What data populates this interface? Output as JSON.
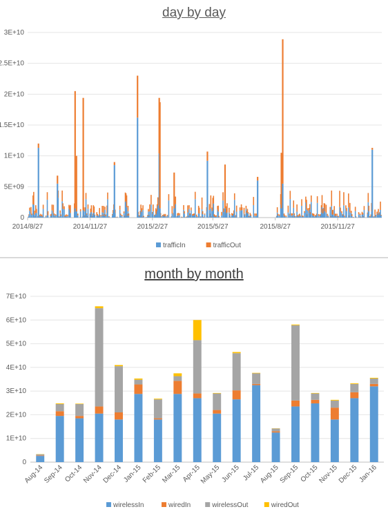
{
  "chart_data": [
    {
      "type": "bar",
      "title": "day by day",
      "stacked": true,
      "ylim": [
        0,
        30000000000
      ],
      "y_ticks": [
        "0",
        "5E+09",
        "1E+10",
        "1.5E+10",
        "2E+10",
        "2.5E+10",
        "3E+10"
      ],
      "x_tick_labels": [
        "2014/8/27",
        "2014/11/27",
        "2015/2/27",
        "2015/5/27",
        "2015/8/27",
        "2015/11/27"
      ],
      "legend_position": "bottom",
      "grid": true,
      "series": [
        {
          "name": "trafficIn",
          "color": "#5b9bd5"
        },
        {
          "name": "trafficOut",
          "color": "#ed7d31"
        }
      ],
      "spikes": [
        {
          "date": "2014-09-12",
          "in": 11300000000,
          "out": 700000000
        },
        {
          "date": "2014-10-10",
          "in": 5500000000,
          "out": 1300000000
        },
        {
          "date": "2014-11-05",
          "in": 1500000000,
          "out": 19000000000
        },
        {
          "date": "2014-11-07",
          "in": 1000000000,
          "out": 9000000000
        },
        {
          "date": "2014-11-17",
          "in": 1200000000,
          "out": 18200000000
        },
        {
          "date": "2015-01-02",
          "in": 8500000000,
          "out": 500000000
        },
        {
          "date": "2015-02-05",
          "in": 16200000000,
          "out": 6800000000
        },
        {
          "date": "2015-03-09",
          "in": 10400000000,
          "out": 9000000000
        },
        {
          "date": "2015-03-10",
          "in": 1500000000,
          "out": 17200000000
        },
        {
          "date": "2015-03-31",
          "in": 1500000000,
          "out": 5800000000
        },
        {
          "date": "2015-05-19",
          "in": 9200000000,
          "out": 1500000000
        },
        {
          "date": "2015-06-14",
          "in": 1500000000,
          "out": 7100000000
        },
        {
          "date": "2015-08-01",
          "in": 6000000000,
          "out": 600000000
        },
        {
          "date": "2015-09-05",
          "in": 1500000000,
          "out": 9000000000
        },
        {
          "date": "2015-09-07",
          "in": 5500000000,
          "out": 23400000000
        },
        {
          "date": "2016-01-17",
          "in": 11000000000,
          "out": 300000000
        }
      ]
    },
    {
      "type": "bar",
      "title": "month by month",
      "stacked": true,
      "ylim": [
        0,
        70000000000
      ],
      "y_ticks": [
        "0",
        "1E+10",
        "2E+10",
        "3E+10",
        "4E+10",
        "5E+10",
        "6E+10",
        "7E+10"
      ],
      "categories": [
        "Aug-14",
        "Sep-14",
        "Oct-14",
        "Nov-14",
        "Dec-14",
        "Jan-15",
        "Feb-15",
        "Mar-15",
        "Apr-15",
        "May-15",
        "Jun-15",
        "Jul-15",
        "Aug-15",
        "Sep-15",
        "Oct-15",
        "Nov-15",
        "Dec-15",
        "Jan-16"
      ],
      "legend_position": "bottom",
      "grid": true,
      "series": [
        {
          "name": "wirelessIn",
          "color": "#5b9bd5",
          "values": [
            2600000000,
            19500000000,
            18500000000,
            20500000000,
            18000000000,
            28800000000,
            18000000000,
            28800000000,
            27000000000,
            20500000000,
            26500000000,
            32500000000,
            12500000000,
            23500000000,
            24800000000,
            18000000000,
            27000000000,
            32000000000
          ]
        },
        {
          "name": "wiredIn",
          "color": "#ed7d31",
          "values": [
            200000000,
            2000000000,
            1000000000,
            3000000000,
            3000000000,
            4000000000,
            500000000,
            5500000000,
            2000000000,
            1500000000,
            3800000000,
            500000000,
            500000000,
            2500000000,
            1500000000,
            5000000000,
            2500000000,
            1000000000
          ]
        },
        {
          "name": "wirelessOut",
          "color": "#a5a5a5",
          "values": [
            500000000,
            3000000000,
            5000000000,
            41500000000,
            19500000000,
            2000000000,
            8000000000,
            2000000000,
            22500000000,
            7000000000,
            15700000000,
            4500000000,
            1200000000,
            31800000000,
            2700000000,
            3000000000,
            3500000000,
            2300000000
          ]
        },
        {
          "name": "wiredOut",
          "color": "#ffc000",
          "values": [
            100000000,
            300000000,
            200000000,
            800000000,
            500000000,
            500000000,
            300000000,
            1200000000,
            8500000000,
            200000000,
            500000000,
            200000000,
            100000000,
            300000000,
            200000000,
            300000000,
            300000000,
            300000000
          ]
        }
      ]
    }
  ]
}
